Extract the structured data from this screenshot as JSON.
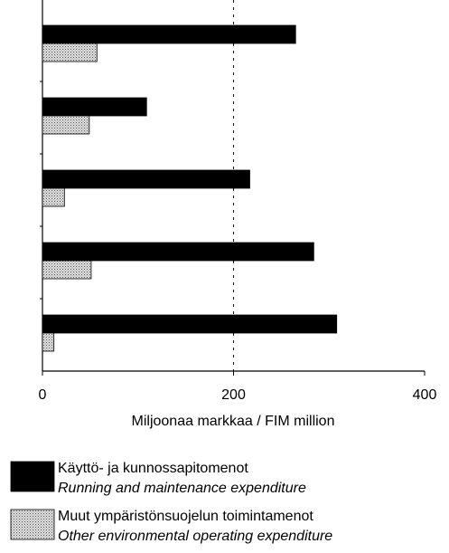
{
  "chart_data": {
    "type": "barh",
    "categories": [
      null,
      null,
      null,
      null,
      null
    ],
    "series": [
      {
        "name": "Käyttö- ja kunnossapitomenot",
        "name_en": "Running and maintenance expenditure",
        "color": "#000000",
        "values": [
          265,
          109,
          217,
          284,
          308
        ]
      },
      {
        "name": "Muut ympäristönsuojelun toimintamenot",
        "name_en": "Other environmental operating expenditure",
        "color": "#b8b8b8",
        "values": [
          57,
          49,
          23,
          51,
          12
        ]
      }
    ],
    "xlim": [
      0,
      400
    ],
    "xticks": [
      0,
      200,
      400
    ],
    "xlabel": "Miljoonaa markkaa / FIM million",
    "grid": true
  }
}
